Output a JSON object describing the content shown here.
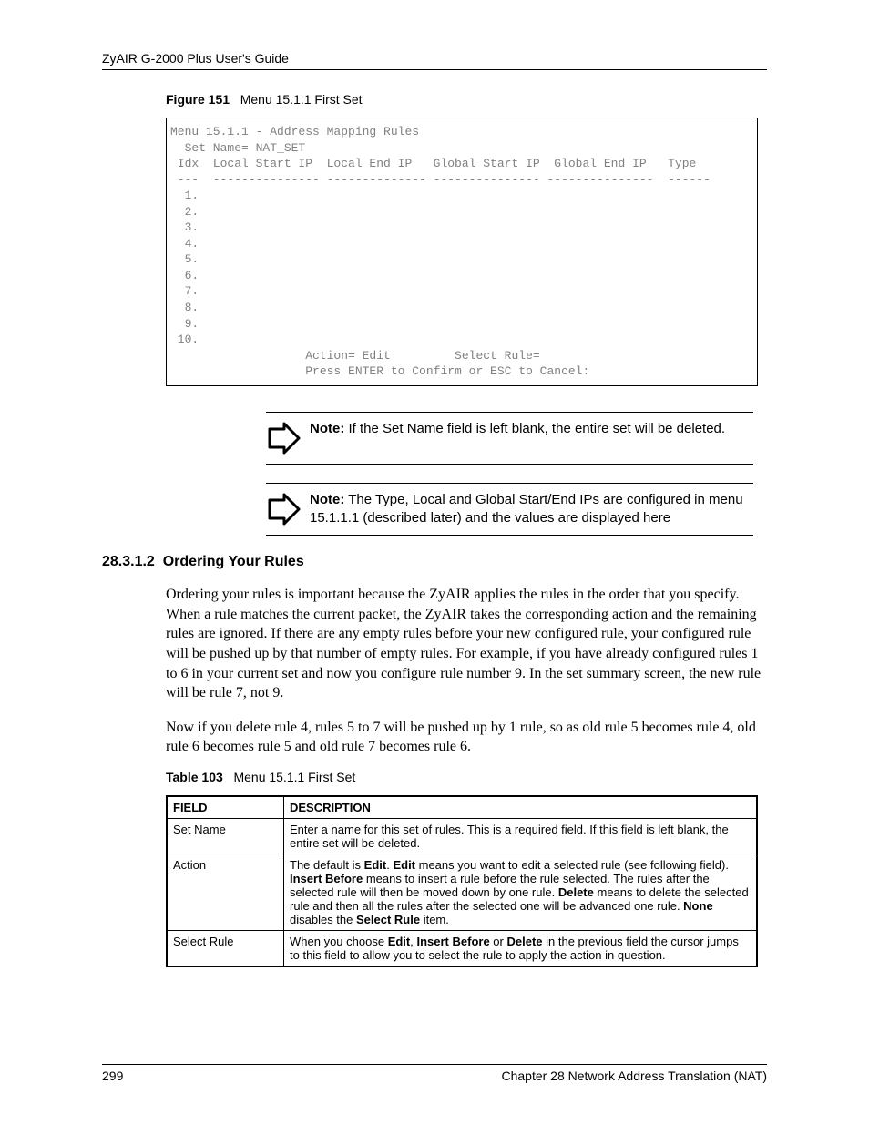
{
  "header": {
    "running": "ZyAIR G-2000 Plus User's Guide"
  },
  "figure": {
    "label": "Figure 151",
    "title": "Menu 15.1.1 First Set"
  },
  "terminal": "Menu 15.1.1 - Address Mapping Rules\n  Set Name= NAT_SET\n Idx  Local Start IP  Local End IP   Global Start IP  Global End IP   Type\n ---  --------------- -------------- --------------- ---------------  ------\n  1.\n  2.\n  3.\n  4.\n  5.\n  6.\n  7.\n  8.\n  9.\n 10.\n                   Action= Edit         Select Rule=\n                   Press ENTER to Confirm or ESC to Cancel:",
  "notes": [
    {
      "prefix": "Note:",
      "text": " If the Set Name field is left blank, the entire set will be deleted."
    },
    {
      "prefix": "Note:",
      "text": " The Type, Local and Global Start/End IPs are configured in menu 15.1.1.1 (described later) and the values are displayed here"
    }
  ],
  "section": {
    "number": "28.3.1.2",
    "title": "Ordering Your Rules"
  },
  "paragraphs": [
    "Ordering your rules is important because the ZyAIR applies the rules in the order that you specify. When a rule matches the current packet, the ZyAIR takes the corresponding action and the remaining rules are ignored. If there are any empty rules before your new configured rule, your configured rule will be pushed up by that number of empty rules. For example, if you have already configured rules 1 to 6 in your current set and now you configure rule number 9. In the set summary screen, the new rule will be rule 7, not 9.",
    "Now if you delete rule 4, rules 5 to 7 will be pushed up by 1 rule, so as old rule 5 becomes rule 4, old rule 6 becomes rule 5 and old rule 7 becomes rule 6."
  ],
  "table": {
    "label": "Table 103",
    "title": "Menu 15.1.1 First Set",
    "headers": {
      "field": "FIELD",
      "description": "DESCRIPTION"
    },
    "rows": [
      {
        "field": "Set Name",
        "desc_html": "Enter a name for this set of rules. This is a required field. If this field is left blank, the entire set will be deleted."
      },
      {
        "field": "Action",
        "desc_html": "The default is <b>Edit</b>. <b>Edit</b> means you want to edit a selected rule (see following field). <b>Insert Before</b> means to insert a rule before the rule selected. The rules after the selected rule will then be moved down by one rule. <b>Delete</b> means to delete the selected rule and then all the rules after the selected one will be advanced one rule. <b>None</b> disables the <b>Select Rule</b> item."
      },
      {
        "field": "Select Rule",
        "desc_html": "When you choose <b>Edit</b>, <b>Insert Before</b> or <b>Delete</b> in the previous field the cursor jumps to this field to allow you to select the rule to apply the action in question."
      }
    ]
  },
  "footer": {
    "page": "299",
    "chapter": "Chapter 28 Network Address Translation (NAT)"
  }
}
